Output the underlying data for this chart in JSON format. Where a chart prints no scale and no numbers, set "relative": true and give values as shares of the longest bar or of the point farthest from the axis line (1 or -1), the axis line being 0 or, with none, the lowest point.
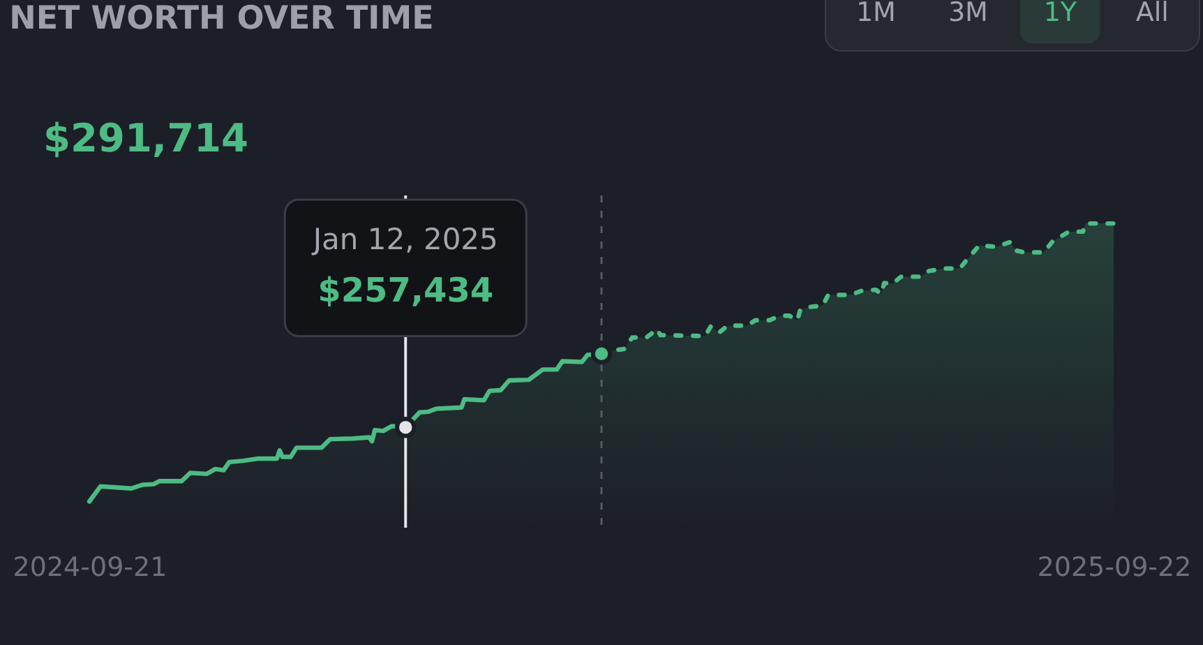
{
  "chart_data": {
    "type": "area",
    "title": "NET WORTH OVER TIME",
    "subtitle": "$291,714",
    "relative": true,
    "xlim": [
      "2024-09-21",
      "2025-09-22"
    ],
    "xticks": [
      "2024-09-21",
      "2025-09-22"
    ],
    "series": [
      {
        "color": "#4dbb84",
        "line_style": "solid",
        "x": [
          "2024-09-21",
          "2024-09-25",
          "2024-10-06",
          "2024-10-10",
          "2024-10-14",
          "2024-10-16",
          "2024-10-24",
          "2024-10-27",
          "2024-11-02",
          "2024-11-05",
          "2024-11-08",
          "2024-11-10",
          "2024-11-15",
          "2024-11-20",
          "2024-11-27",
          "2024-11-28",
          "2024-11-29",
          "2024-12-02",
          "2024-12-04",
          "2024-12-13",
          "2024-12-16",
          "2024-12-24",
          "2024-12-30",
          "2024-12-31",
          "2025-01-01",
          "2025-01-04",
          "2025-01-07",
          "2025-01-12",
          "2025-01-17",
          "2025-01-20",
          "2025-01-23",
          "2025-02-01",
          "2025-02-02",
          "2025-02-09",
          "2025-02-11",
          "2025-02-15",
          "2025-02-18",
          "2025-02-25",
          "2025-02-26",
          "2025-03-02",
          "2025-03-07",
          "2025-03-09",
          "2025-03-16",
          "2025-03-18",
          "2025-03-23"
        ],
        "values": [
          0.086,
          0.136,
          0.129,
          0.141,
          0.143,
          0.153,
          0.153,
          0.18,
          0.177,
          0.193,
          0.189,
          0.216,
          0.22,
          0.227,
          0.227,
          0.254,
          0.233,
          0.233,
          0.263,
          0.263,
          0.291,
          0.293,
          0.297,
          0.284,
          0.321,
          0.318,
          0.334,
          0.33,
          0.379,
          0.381,
          0.391,
          0.395,
          0.422,
          0.419,
          0.45,
          0.452,
          0.484,
          0.486,
          0.493,
          0.52,
          0.52,
          0.547,
          0.545,
          0.568,
          0.572
        ]
      },
      {
        "color": "#4dbb84",
        "line_style": "dashed",
        "x": [
          "2025-03-23",
          "2025-03-28",
          "2025-03-31",
          "2025-04-03",
          "2025-04-08",
          "2025-04-12",
          "2025-04-13",
          "2025-04-29",
          "2025-05-01",
          "2025-05-04",
          "2025-05-07",
          "2025-05-14",
          "2025-05-17",
          "2025-05-22",
          "2025-05-26",
          "2025-05-29",
          "2025-06-01",
          "2025-06-02",
          "2025-06-05",
          "2025-06-10",
          "2025-06-12",
          "2025-06-20",
          "2025-06-24",
          "2025-06-29",
          "2025-07-01",
          "2025-07-02",
          "2025-07-05",
          "2025-07-08",
          "2025-07-15",
          "2025-07-18",
          "2025-07-24",
          "2025-07-29",
          "2025-08-01",
          "2025-08-05",
          "2025-08-11",
          "2025-08-16",
          "2025-08-18",
          "2025-08-21",
          "2025-08-28",
          "2025-08-31",
          "2025-09-02",
          "2025-09-06",
          "2025-09-11",
          "2025-09-12",
          "2025-09-22"
        ],
        "values": [
          0.572,
          0.584,
          0.587,
          0.625,
          0.625,
          0.653,
          0.633,
          0.63,
          0.661,
          0.641,
          0.664,
          0.664,
          0.682,
          0.682,
          0.697,
          0.697,
          0.682,
          0.716,
          0.725,
          0.73,
          0.765,
          0.765,
          0.779,
          0.782,
          0.768,
          0.804,
          0.802,
          0.825,
          0.825,
          0.844,
          0.852,
          0.852,
          0.886,
          0.928,
          0.923,
          0.939,
          0.911,
          0.905,
          0.905,
          0.939,
          0.951,
          0.973,
          0.973,
          1,
          1
        ]
      },
      {
        "type": "scatter",
        "color": "#4dbb84",
        "marker": "circle",
        "x": [
          "2025-03-23"
        ],
        "values": [
          0.572
        ]
      },
      {
        "type": "scatter",
        "color": "#e4e5e9",
        "marker": "circle",
        "x": [
          "2025-01-12"
        ],
        "values": [
          0.33
        ]
      }
    ],
    "ref_lines": [
      {
        "axis": "x",
        "value": "2025-01-12",
        "line_style": "solid",
        "color": "#e4e5e9"
      },
      {
        "axis": "x",
        "value": "2025-03-23",
        "line_style": "dashed",
        "color": "#555a63"
      }
    ],
    "annotations": [
      {
        "text": "Jan 12, 2025",
        "x": "2025-01-12"
      },
      {
        "text": "$257,434",
        "x": "2025-01-12"
      },
      "1M",
      "3M",
      "1Y",
      "All"
    ]
  }
}
